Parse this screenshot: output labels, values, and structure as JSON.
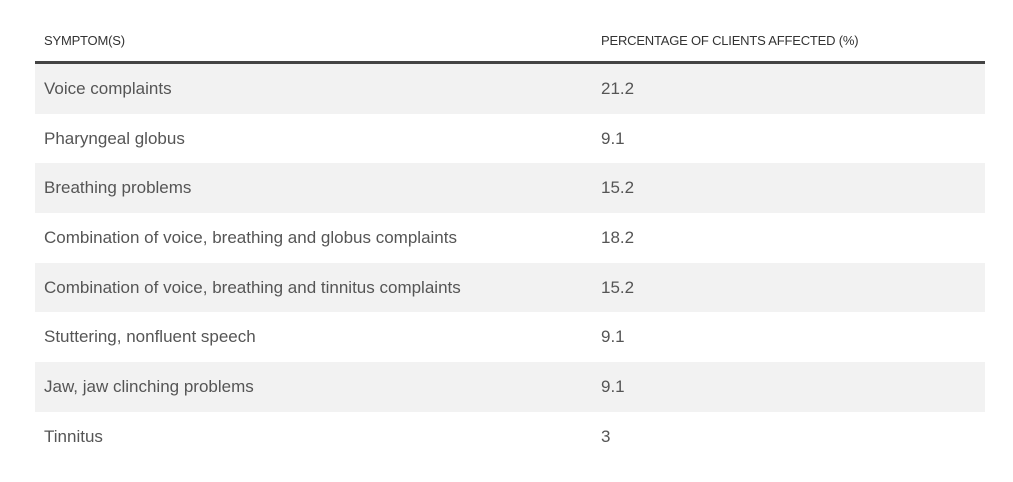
{
  "table": {
    "headers": [
      "SYMPTOM(S)",
      "PERCENTAGE OF CLIENTS AFFECTED (%)"
    ],
    "rows": [
      {
        "symptom": "Voice complaints",
        "percentage": "21.2"
      },
      {
        "symptom": "Pharyngeal globus",
        "percentage": "9.1"
      },
      {
        "symptom": "Breathing problems",
        "percentage": "15.2"
      },
      {
        "symptom": "Combination of voice, breathing and globus complaints",
        "percentage": "18.2"
      },
      {
        "symptom": "Combination of voice, breathing and tinnitus complaints",
        "percentage": "15.2"
      },
      {
        "symptom": "Stuttering, nonfluent speech",
        "percentage": "9.1"
      },
      {
        "symptom": "Jaw, jaw clinching problems",
        "percentage": "9.1"
      },
      {
        "symptom": "Tinnitus",
        "percentage": "3"
      }
    ]
  }
}
